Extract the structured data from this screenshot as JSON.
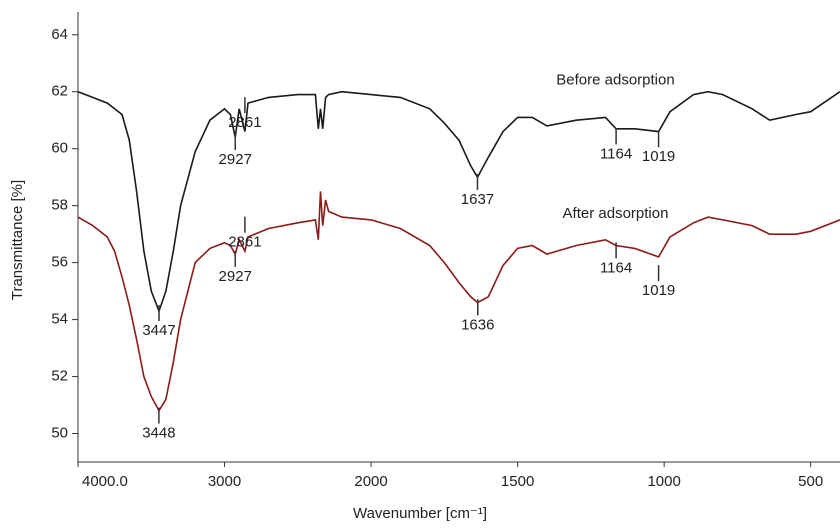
{
  "chart_data": {
    "type": "line",
    "xlabel": "Wavenumber [cm⁻¹]",
    "ylabel": "Transmittance  [%]",
    "xlim": [
      4000,
      400
    ],
    "x_scale_break": 2000,
    "x_scale_factor_below_break": 2,
    "ylim": [
      49,
      64.8
    ],
    "xticks": [
      {
        "value": 4000,
        "label": "4000.0"
      },
      3000,
      2000,
      1500,
      1000,
      500
    ],
    "yticks": [
      50,
      52,
      54,
      56,
      58,
      60,
      62,
      64
    ],
    "x": [
      4000,
      3900,
      3800,
      3750,
      3700,
      3650,
      3600,
      3550,
      3500,
      3447,
      3400,
      3350,
      3300,
      3200,
      3100,
      3000,
      2960,
      2927,
      2900,
      2861,
      2840,
      2700,
      2500,
      2380,
      2360,
      2345,
      2330,
      2310,
      2290,
      2200,
      2000,
      1900,
      1800,
      1750,
      1700,
      1660,
      1637,
      1600,
      1550,
      1500,
      1450,
      1400,
      1300,
      1200,
      1164,
      1100,
      1019,
      980,
      900,
      850,
      800,
      700,
      640,
      550,
      500,
      400
    ],
    "series": [
      {
        "name": "Before adsorption",
        "color": "#1a1a1a",
        "values": [
          62.0,
          61.8,
          61.6,
          61.4,
          61.2,
          60.3,
          58.5,
          56.4,
          55.0,
          54.3,
          55.0,
          56.4,
          58.0,
          59.9,
          61.0,
          61.4,
          61.2,
          60.4,
          61.4,
          60.6,
          61.6,
          61.8,
          61.9,
          61.9,
          60.7,
          61.4,
          60.7,
          61.8,
          61.9,
          62.0,
          61.9,
          61.8,
          61.4,
          60.9,
          60.3,
          59.4,
          59.0,
          59.7,
          60.6,
          61.1,
          61.1,
          60.8,
          61.0,
          61.1,
          60.7,
          60.7,
          60.6,
          61.3,
          61.9,
          62.0,
          61.9,
          61.4,
          61.0,
          61.2,
          61.3,
          62.0
        ]
      },
      {
        "name": "After adsorption",
        "color": "#8b1a1a",
        "values": [
          57.6,
          57.3,
          56.9,
          56.4,
          55.5,
          54.5,
          53.3,
          52.0,
          51.3,
          50.8,
          51.2,
          52.5,
          54.0,
          56.0,
          56.5,
          56.7,
          56.6,
          56.3,
          56.8,
          56.4,
          56.9,
          57.2,
          57.4,
          57.5,
          56.8,
          58.5,
          57.3,
          58.2,
          57.8,
          57.6,
          57.5,
          57.2,
          56.6,
          56.0,
          55.3,
          54.8,
          54.6,
          54.8,
          55.9,
          56.5,
          56.6,
          56.3,
          56.6,
          56.8,
          56.6,
          56.5,
          56.2,
          56.9,
          57.4,
          57.6,
          57.5,
          57.3,
          57.0,
          57.0,
          57.1,
          57.5
        ]
      }
    ],
    "annotations": [
      {
        "text": "Before adsorption",
        "x": 1166,
        "y": 62.4
      },
      {
        "text": "After adsorption",
        "x": 1166,
        "y": 57.7
      },
      {
        "text": "2927",
        "x": 2927,
        "y": 59.6
      },
      {
        "text": "2861",
        "x": 2861,
        "y": 60.9
      },
      {
        "text": "1637",
        "x": 1637,
        "y": 58.2
      },
      {
        "text": "1164",
        "x": 1164,
        "y": 59.8
      },
      {
        "text": "1019",
        "x": 1019,
        "y": 59.7
      },
      {
        "text": "3447",
        "x": 3447,
        "y": 53.6
      },
      {
        "text": "3448",
        "x": 3448,
        "y": 50.0
      },
      {
        "text": "2927",
        "x": 2927,
        "y": 55.5
      },
      {
        "text": "2861",
        "x": 2861,
        "y": 56.7
      },
      {
        "text": "1636",
        "x": 1636,
        "y": 53.8
      },
      {
        "text": "1164",
        "x": 1164,
        "y": 55.8
      },
      {
        "text": "1019",
        "x": 1019,
        "y": 55.0
      }
    ]
  }
}
